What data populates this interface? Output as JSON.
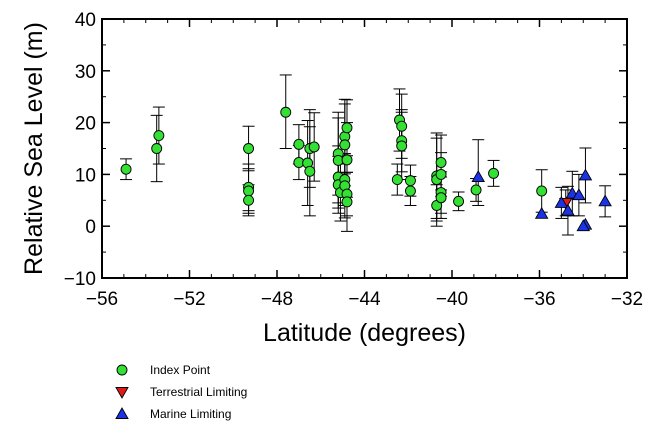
{
  "chart_data": {
    "type": "scatter",
    "xlabel": "Latitude (degrees)",
    "ylabel": "Relative Sea Level (m)",
    "xlim": [
      -56,
      -32
    ],
    "ylim": [
      -10,
      40
    ],
    "xticks": [
      -56,
      -52,
      -48,
      -44,
      -40,
      -36,
      -32
    ],
    "xtick_labels": [
      "−56",
      "−52",
      "−48",
      "−44",
      "−40",
      "−36",
      "−32"
    ],
    "yticks": [
      -10,
      0,
      10,
      20,
      30,
      40
    ],
    "ytick_labels": [
      "−10",
      "0",
      "10",
      "20",
      "30",
      "40"
    ],
    "grid": false,
    "legend_position": "bottom-left, below plot",
    "series": [
      {
        "name": "Index Point",
        "marker": "circle",
        "color": "#33e033",
        "points": [
          {
            "x": -54.9,
            "y": 11.0,
            "lo": 9.0,
            "hi": 13.0
          },
          {
            "x": -53.5,
            "y": 15.0,
            "lo": 8.6,
            "hi": 21.4
          },
          {
            "x": -53.4,
            "y": 17.5,
            "lo": 12.0,
            "hi": 23.0
          },
          {
            "x": -49.3,
            "y": 15.0,
            "lo": 10.7,
            "hi": 19.3
          },
          {
            "x": -49.3,
            "y": 7.5,
            "lo": 3.0,
            "hi": 12.0
          },
          {
            "x": -49.3,
            "y": 6.8,
            "lo": 2.5,
            "hi": 11.1
          },
          {
            "x": -49.3,
            "y": 5.0,
            "lo": 2.0,
            "hi": 8.0
          },
          {
            "x": -47.6,
            "y": 22.0,
            "lo": 15.0,
            "hi": 29.2
          },
          {
            "x": -47.0,
            "y": 15.8,
            "lo": 12.0,
            "hi": 19.6
          },
          {
            "x": -47.0,
            "y": 12.3,
            "lo": 9.0,
            "hi": 15.6
          },
          {
            "x": -46.6,
            "y": 12.2,
            "lo": 4.0,
            "hi": 20.4
          },
          {
            "x": -46.5,
            "y": 15.0,
            "lo": 7.5,
            "hi": 22.5
          },
          {
            "x": -46.5,
            "y": 10.6,
            "lo": 2.0,
            "hi": 19.2
          },
          {
            "x": -46.3,
            "y": 15.3,
            "lo": 8.7,
            "hi": 21.9
          },
          {
            "x": -45.2,
            "y": 14.0,
            "lo": 6.0,
            "hi": 22.0
          },
          {
            "x": -45.2,
            "y": 12.7,
            "lo": 4.5,
            "hi": 20.9
          },
          {
            "x": -45.2,
            "y": 9.5,
            "lo": 3.5,
            "hi": 15.5
          },
          {
            "x": -45.2,
            "y": 8.0,
            "lo": 2.5,
            "hi": 13.5
          },
          {
            "x": -45.1,
            "y": 6.5,
            "lo": 1.0,
            "hi": 12.0
          },
          {
            "x": -44.9,
            "y": 17.3,
            "lo": 10.1,
            "hi": 24.5
          },
          {
            "x": -44.9,
            "y": 15.7,
            "lo": 7.8,
            "hi": 23.6
          },
          {
            "x": -44.8,
            "y": 19.0,
            "lo": 13.6,
            "hi": 24.4
          },
          {
            "x": -44.8,
            "y": 12.8,
            "lo": 5.6,
            "hi": 20.0
          },
          {
            "x": -44.9,
            "y": 9.0,
            "lo": 4.0,
            "hi": 14.0
          },
          {
            "x": -44.9,
            "y": 7.8,
            "lo": 1.6,
            "hi": 14.0
          },
          {
            "x": -44.8,
            "y": 6.2,
            "lo": 2.0,
            "hi": 10.4
          },
          {
            "x": -44.8,
            "y": 4.7,
            "lo": -1.0,
            "hi": 10.4
          },
          {
            "x": -42.4,
            "y": 20.5,
            "lo": 14.5,
            "hi": 26.5
          },
          {
            "x": -42.3,
            "y": 19.3,
            "lo": 13.1,
            "hi": 25.5
          },
          {
            "x": -42.3,
            "y": 16.5,
            "lo": 10.5,
            "hi": 22.5
          },
          {
            "x": -42.3,
            "y": 15.5,
            "lo": 9.0,
            "hi": 22.0
          },
          {
            "x": -42.5,
            "y": 9.0,
            "lo": 6.0,
            "hi": 12.0
          },
          {
            "x": -41.9,
            "y": 8.8,
            "lo": 5.8,
            "hi": 11.8
          },
          {
            "x": -41.9,
            "y": 6.8,
            "lo": 4.0,
            "hi": 9.6
          },
          {
            "x": -40.7,
            "y": 9.7,
            "lo": 1.5,
            "hi": 18.0
          },
          {
            "x": -40.7,
            "y": 9.0,
            "lo": 1.0,
            "hi": 17.0
          },
          {
            "x": -40.7,
            "y": 4.0,
            "lo": 0.0,
            "hi": 8.0
          },
          {
            "x": -40.5,
            "y": 12.3,
            "lo": 7.0,
            "hi": 17.6
          },
          {
            "x": -40.5,
            "y": 10.0,
            "lo": 5.8,
            "hi": 14.2
          },
          {
            "x": -40.5,
            "y": 6.5,
            "lo": 2.5,
            "hi": 10.5
          },
          {
            "x": -40.5,
            "y": 5.5,
            "lo": 1.5,
            "hi": 9.5
          },
          {
            "x": -39.7,
            "y": 4.8,
            "lo": 3.0,
            "hi": 6.6
          },
          {
            "x": -38.9,
            "y": 7.0,
            "lo": 4.8,
            "hi": 9.2
          },
          {
            "x": -38.1,
            "y": 10.2,
            "lo": 7.7,
            "hi": 12.7
          },
          {
            "x": -35.9,
            "y": 6.8,
            "lo": 2.7,
            "hi": 10.9
          }
        ]
      },
      {
        "name": "Terrestrial Limiting",
        "marker": "triangle-down",
        "color": "#e01a1a",
        "points": [
          {
            "x": -34.8,
            "y": 4.5,
            "lo": 2.0,
            "hi": 7.0
          }
        ]
      },
      {
        "name": "Marine Limiting",
        "marker": "triangle-up",
        "color": "#1a33e6",
        "points": [
          {
            "x": -38.8,
            "y": 9.5,
            "lo": 4.0,
            "hi": 16.7
          },
          {
            "x": -35.9,
            "y": 2.4,
            "lo": null,
            "hi": null
          },
          {
            "x": -35.0,
            "y": 4.5,
            "lo": 1.5,
            "hi": 7.5
          },
          {
            "x": -34.7,
            "y": 3.0,
            "lo": -1.7,
            "hi": 7.7
          },
          {
            "x": -34.5,
            "y": 6.3,
            "lo": 2.0,
            "hi": 10.6
          },
          {
            "x": -34.2,
            "y": 6.0,
            "lo": 2.0,
            "hi": 10.0
          },
          {
            "x": -33.9,
            "y": 9.8,
            "lo": 4.5,
            "hi": 15.1
          },
          {
            "x": -33.9,
            "y": 0.3,
            "lo": null,
            "hi": null
          },
          {
            "x": -34.0,
            "y": 0.0,
            "lo": null,
            "hi": null
          },
          {
            "x": -33.0,
            "y": 4.8,
            "lo": 1.8,
            "hi": 7.8
          }
        ]
      }
    ]
  }
}
